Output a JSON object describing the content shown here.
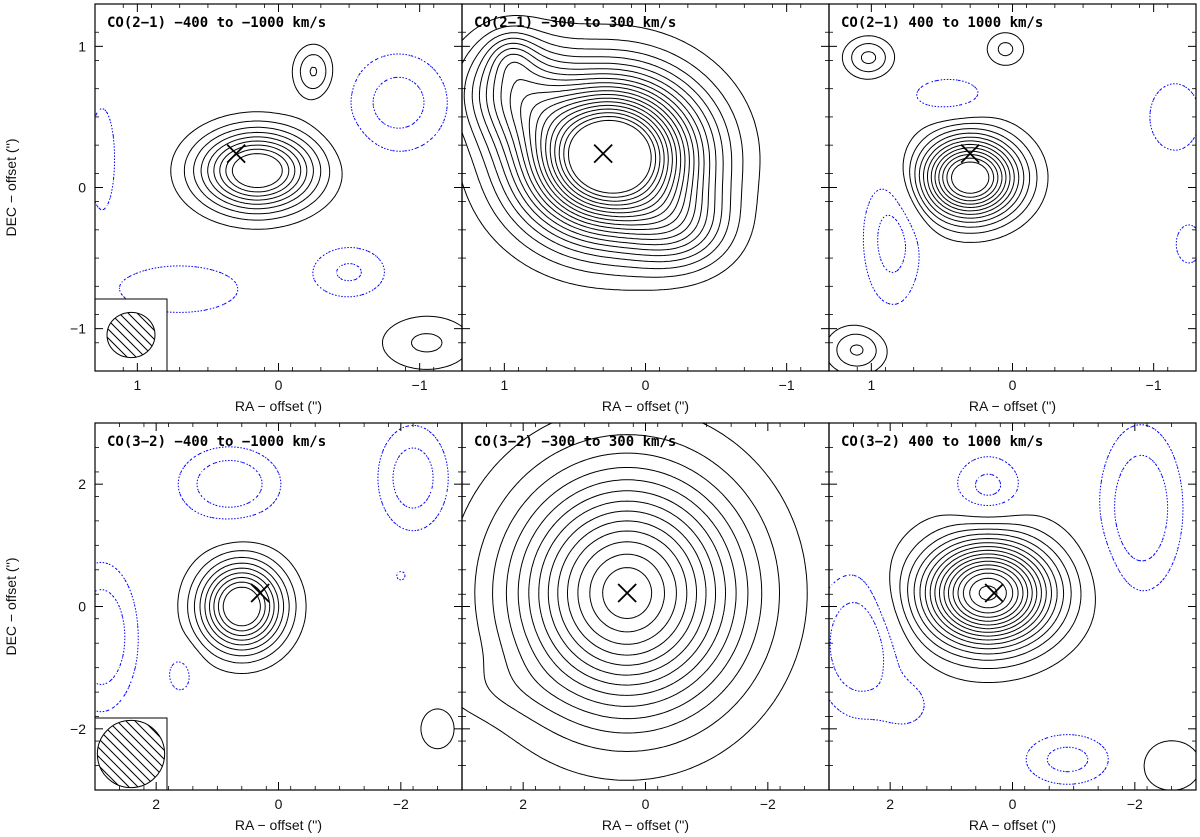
{
  "figure": {
    "xlabel": "RA − offset ('')",
    "ylabel": "DEC − offset ('')",
    "positive_contour_color": "#000000",
    "negative_contour_color": "#0000ff",
    "marker": "×"
  },
  "chart_data": [
    {
      "type": "contour",
      "title": "CO(2−1) −400 to −1000 km/s",
      "xlim": [
        1.3,
        -1.3
      ],
      "ylim": [
        -1.3,
        1.3
      ],
      "xticks": [
        1,
        0,
        -1
      ],
      "yticks": [
        -1,
        0,
        1
      ],
      "xticklabels": [
        "1",
        "0",
        "−1"
      ],
      "yticklabels": [
        "−1",
        "0",
        "1"
      ],
      "beam": {
        "x": 1.12,
        "y": -1.08,
        "width": 0.34,
        "height": 0.32
      },
      "marker": [
        0.3,
        0.24
      ],
      "sources": [
        {
          "x": 0.15,
          "y": 0.12,
          "amp": 11,
          "sx": 0.28,
          "sy": 0.19
        },
        {
          "x": -0.25,
          "y": 0.82,
          "amp": 3.2,
          "sx": 0.1,
          "sy": 0.13
        },
        {
          "x": -1.05,
          "y": -1.1,
          "amp": 2.2,
          "sx": 0.25,
          "sy": 0.15
        },
        {
          "x": 1.05,
          "y": -1.25,
          "amp": 2.0,
          "sx": 0.2,
          "sy": 0.08
        },
        {
          "x": -0.85,
          "y": 0.6,
          "amp": -2.6,
          "sx": 0.25,
          "sy": 0.25
        },
        {
          "x": -0.5,
          "y": -0.6,
          "amp": -2.2,
          "sx": 0.2,
          "sy": 0.14
        },
        {
          "x": 0.7,
          "y": -0.72,
          "amp": -2.0,
          "sx": 0.35,
          "sy": 0.14
        },
        {
          "x": 1.25,
          "y": 0.2,
          "amp": -1.5,
          "sx": 0.1,
          "sy": 0.4
        }
      ],
      "positive_levels": [
        1,
        2,
        3,
        4,
        5,
        6,
        7,
        8,
        9
      ],
      "negative_levels": [
        -1,
        -2
      ]
    },
    {
      "type": "contour",
      "title": "CO(2−1) −300 to 300 km/s",
      "xlim": [
        1.3,
        -1.3
      ],
      "ylim": [
        -1.3,
        1.3
      ],
      "xticks": [
        1,
        0,
        -1
      ],
      "yticks": [
        -1,
        0,
        1
      ],
      "xticklabels": [
        "1",
        "0",
        "−1"
      ],
      "yticklabels": [],
      "beam": null,
      "marker": [
        0.3,
        0.24
      ],
      "sources": [
        {
          "x": 0.25,
          "y": 0.22,
          "amp": 24,
          "sx": 0.42,
          "sy": 0.37
        },
        {
          "x": 0.95,
          "y": 0.7,
          "amp": 6,
          "sx": 0.25,
          "sy": 0.25
        },
        {
          "x": -0.25,
          "y": -0.3,
          "amp": 4,
          "sx": 0.25,
          "sy": 0.2
        },
        {
          "x": 0.95,
          "y": 0.93,
          "amp": 2.4,
          "sx": 0.12,
          "sy": 0.12
        }
      ],
      "positive_levels": [
        1,
        2,
        3,
        4,
        5,
        6,
        7,
        8,
        9,
        10,
        11,
        12,
        13,
        14,
        15,
        16,
        17,
        18,
        19
      ],
      "negative_levels": []
    },
    {
      "type": "contour",
      "title": "CO(2−1) 400 to 1000 km/s",
      "xlim": [
        1.3,
        -1.3
      ],
      "ylim": [
        -1.3,
        1.3
      ],
      "xticks": [
        1,
        0,
        -1
      ],
      "yticks": [
        -1,
        0,
        1
      ],
      "xticklabels": [
        "1",
        "0",
        "−1"
      ],
      "yticklabels": [],
      "beam": null,
      "marker": [
        0.3,
        0.24
      ],
      "sources": [
        {
          "x": 0.3,
          "y": 0.07,
          "amp": 14,
          "sx": 0.24,
          "sy": 0.2
        },
        {
          "x": 1.02,
          "y": 0.92,
          "amp": 3.3,
          "sx": 0.12,
          "sy": 0.1
        },
        {
          "x": 0.05,
          "y": 0.98,
          "amp": 2.3,
          "sx": 0.1,
          "sy": 0.09
        },
        {
          "x": 1.1,
          "y": -1.15,
          "amp": 3.2,
          "sx": 0.15,
          "sy": 0.12
        },
        {
          "x": 0.85,
          "y": -0.35,
          "amp": -2.6,
          "sx": 0.15,
          "sy": 0.35
        },
        {
          "x": 0.45,
          "y": 0.65,
          "amp": -2.0,
          "sx": 0.2,
          "sy": 0.1
        },
        {
          "x": -1.15,
          "y": 0.5,
          "amp": -2.0,
          "sx": 0.15,
          "sy": 0.2
        },
        {
          "x": -1.25,
          "y": -0.4,
          "amp": -1.5,
          "sx": 0.1,
          "sy": 0.15
        }
      ],
      "positive_levels": [
        1,
        2,
        3,
        4,
        5,
        6,
        7,
        8,
        9,
        10,
        11,
        12
      ],
      "negative_levels": [
        -1,
        -2
      ]
    },
    {
      "type": "contour",
      "title": "CO(3−2) −400 to −1000 km/s",
      "xlim": [
        3,
        -3
      ],
      "ylim": [
        -3,
        3
      ],
      "xticks": [
        2,
        0,
        -2
      ],
      "yticks": [
        -2,
        0,
        2
      ],
      "xticklabels": [
        "2",
        "0",
        "−2"
      ],
      "yticklabels": [
        "−2",
        "0",
        "2"
      ],
      "beam": {
        "x": 2.4,
        "y": -2.4,
        "width": 1.1,
        "height": 1.1
      },
      "marker": [
        0.3,
        0.22
      ],
      "sources": [
        {
          "x": 0.6,
          "y": 0.0,
          "amp": 11,
          "sx": 0.48,
          "sy": 0.5
        },
        {
          "x": -2.6,
          "y": -2.0,
          "amp": 1.8,
          "sx": 0.25,
          "sy": 0.3
        },
        {
          "x": 0.8,
          "y": 2.0,
          "amp": -3.2,
          "sx": 0.55,
          "sy": 0.4
        },
        {
          "x": -2.2,
          "y": 2.1,
          "amp": -2.8,
          "sx": 0.4,
          "sy": 0.6
        },
        {
          "x": 2.9,
          "y": -0.5,
          "amp": -3.2,
          "sx": 0.4,
          "sy": 0.8
        },
        {
          "x": 1.6,
          "y": -1.1,
          "amp": -1.5,
          "sx": 0.2,
          "sy": 0.3
        },
        {
          "x": -2.0,
          "y": 0.5,
          "amp": -1.2,
          "sx": 0.1,
          "sy": 0.1
        }
      ],
      "positive_levels": [
        1,
        2,
        3,
        4,
        5,
        6,
        7,
        8,
        9
      ],
      "negative_levels": [
        -1,
        -2
      ]
    },
    {
      "type": "contour",
      "title": "CO(3−2) −300 to 300 km/s",
      "xlim": [
        3,
        -3
      ],
      "ylim": [
        -3,
        3
      ],
      "xticks": [
        2,
        0,
        -2
      ],
      "yticks": [
        -2,
        0,
        2
      ],
      "xticklabels": [
        "2",
        "0",
        "−2"
      ],
      "yticklabels": [],
      "beam": null,
      "marker": [
        0.3,
        0.22
      ],
      "sources": [
        {
          "x": 0.3,
          "y": 0.22,
          "amp": 16,
          "sx": 1.25,
          "sy": 1.3
        },
        {
          "x": 2.7,
          "y": -1.35,
          "amp": 0.7,
          "sx": 0.8,
          "sy": 0.35
        }
      ],
      "positive_levels": [
        1,
        2.2,
        3.4,
        4.6,
        5.8,
        7,
        8.2,
        9.4,
        10.6,
        11.8,
        13,
        14.2,
        15.2
      ],
      "negative_levels": []
    },
    {
      "type": "contour",
      "title": "CO(3−2) 400 to 1000 km/s",
      "xlim": [
        3,
        -3
      ],
      "ylim": [
        -3,
        3
      ],
      "xticks": [
        2,
        0,
        -2
      ],
      "yticks": [
        -2,
        0,
        2
      ],
      "xticklabels": [
        "2",
        "0",
        "−2"
      ],
      "yticklabels": [],
      "beam": null,
      "marker": [
        0.3,
        0.22
      ],
      "sources": [
        {
          "x": 0.4,
          "y": 0.22,
          "amp": 24,
          "sx": 0.72,
          "sy": 0.58
        },
        {
          "x": -2.6,
          "y": -2.6,
          "amp": 2.5,
          "sx": 0.35,
          "sy": 0.3
        },
        {
          "x": 0.4,
          "y": 1.9,
          "amp": -2.6,
          "sx": 0.4,
          "sy": 0.4
        },
        {
          "x": -2.1,
          "y": 1.6,
          "amp": -3.2,
          "sx": 0.45,
          "sy": 0.9
        },
        {
          "x": 2.5,
          "y": -0.6,
          "amp": -3.2,
          "sx": 0.5,
          "sy": 0.8
        },
        {
          "x": -0.9,
          "y": -2.5,
          "amp": -2.5,
          "sx": 0.5,
          "sy": 0.3
        },
        {
          "x": 1.7,
          "y": -1.6,
          "amp": -1.3,
          "sx": 0.3,
          "sy": 0.3
        }
      ],
      "positive_levels": [
        1,
        2.5,
        4,
        5.5,
        7,
        8.5,
        10,
        11.5,
        13,
        14.5,
        16,
        17.5,
        19,
        20.5,
        22,
        23.5
      ],
      "negative_levels": [
        -1,
        -2
      ]
    }
  ]
}
